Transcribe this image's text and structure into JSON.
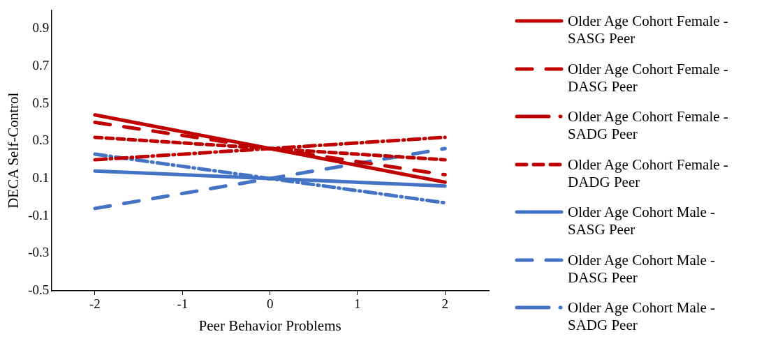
{
  "chart_data": {
    "type": "line",
    "xlabel": "Peer Behavior Problems",
    "ylabel": "DECA Self-Control",
    "x": [
      -2,
      0,
      2
    ],
    "xlim": [
      -2.5,
      2.5
    ],
    "xticks": [
      -2,
      -1,
      0,
      1,
      2
    ],
    "ylim": [
      -0.5,
      1.0
    ],
    "yticks": [
      -0.5,
      -0.3,
      -0.1,
      0.1,
      0.3,
      0.5,
      0.7,
      0.9
    ],
    "grid": false,
    "legend": "right",
    "marker": "none",
    "series": [
      {
        "name": "Older Age Cohort Female - SASG Peer",
        "color": "#c00000",
        "line_style": "solid",
        "values": [
          0.44,
          0.26,
          0.08
        ]
      },
      {
        "name": "Older Age Cohort Female - DASG Peer",
        "color": "#c00000",
        "line_style": "dashed",
        "values": [
          0.4,
          0.26,
          0.12
        ]
      },
      {
        "name": "Older Age Cohort Female - SADG Peer",
        "color": "#c00000",
        "line_style": "dashdot",
        "values": [
          0.2,
          0.26,
          0.32
        ]
      },
      {
        "name": "Older Age Cohort Female - DADG Peer",
        "color": "#c00000",
        "line_style": "dotted",
        "values": [
          0.32,
          0.26,
          0.2
        ]
      },
      {
        "name": "Older Age Cohort Male - SASG Peer",
        "color": "#4472c4",
        "line_style": "solid",
        "values": [
          0.14,
          0.1,
          0.06
        ]
      },
      {
        "name": "Older Age Cohort Male - DASG Peer",
        "color": "#4472c4",
        "line_style": "dashed",
        "values": [
          -0.06,
          0.1,
          0.26
        ]
      },
      {
        "name": "Older Age Cohort Male - SADG Peer",
        "color": "#4472c4",
        "line_style": "dashdot",
        "values": [
          0.23,
          0.1,
          -0.03
        ]
      }
    ]
  }
}
